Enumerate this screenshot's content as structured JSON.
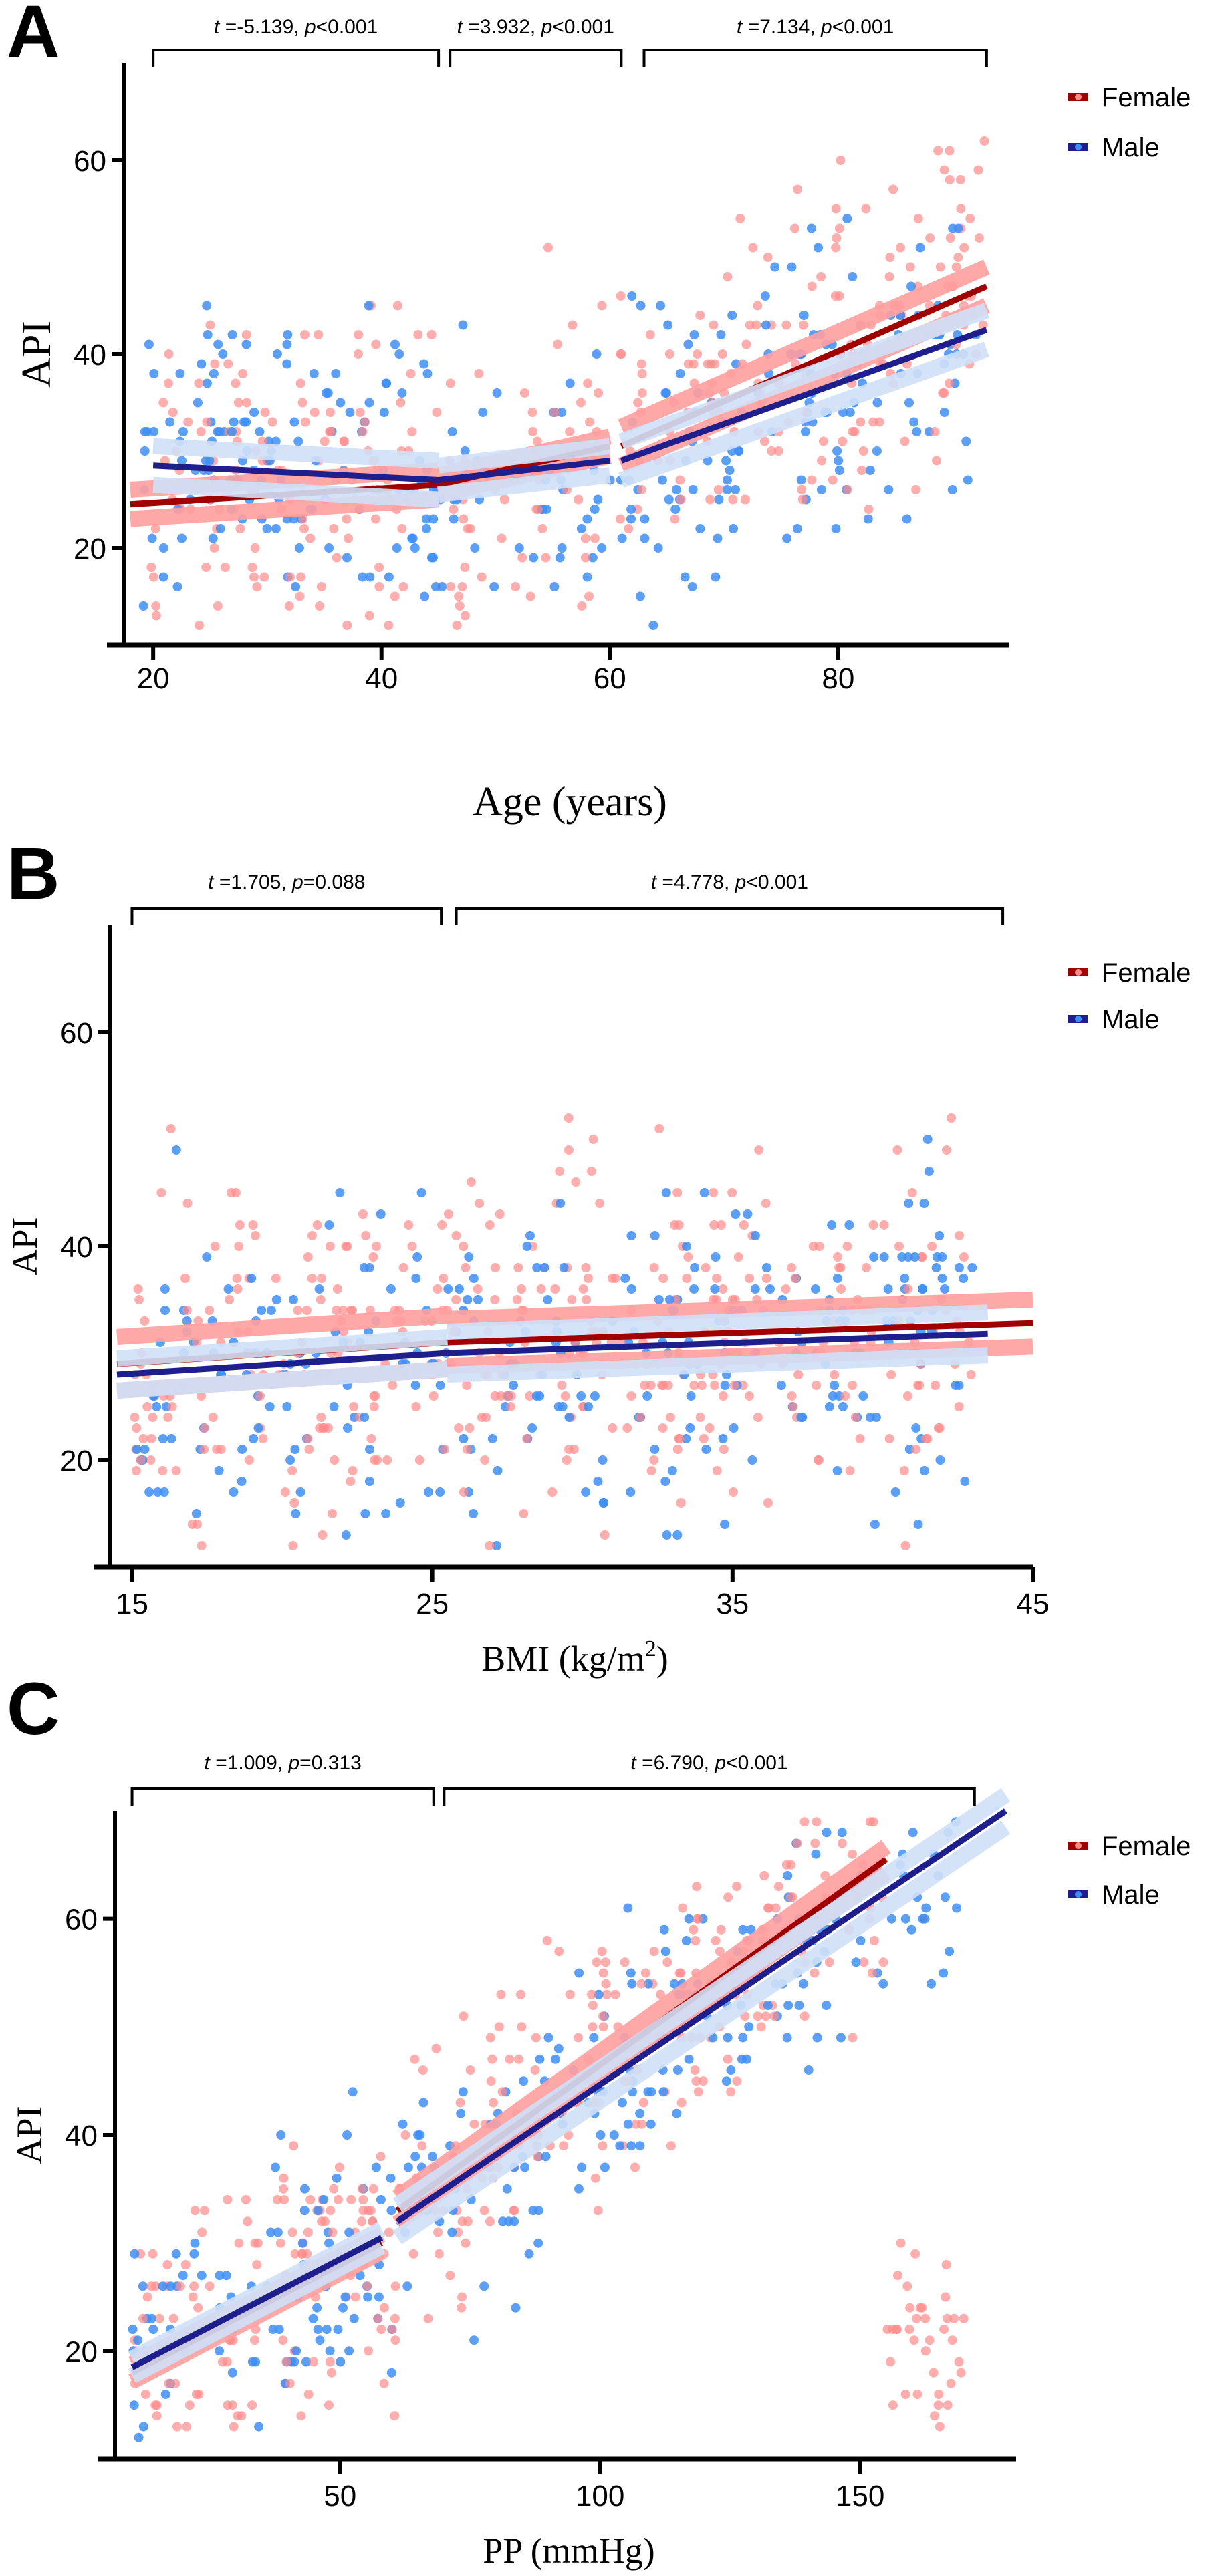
{
  "figure": {
    "colors": {
      "female_point": "#ff8a8a",
      "male_point": "#3f8ef5",
      "female_line": "#a00000",
      "male_line": "#1e1e8c",
      "female_ci": "#ff9e9e",
      "male_ci": "#cfe0f7"
    }
  },
  "chart_data": [
    {
      "panel": "A",
      "type": "scatter",
      "xlabel": "Age (years)",
      "ylabel": "API",
      "xlim": [
        18,
        95
      ],
      "ylim": [
        10,
        70
      ],
      "xticks": [
        20,
        40,
        60,
        80
      ],
      "yticks": [
        20,
        40,
        60
      ],
      "legend": {
        "position": "top-right",
        "entries": [
          "Female",
          "Male"
        ]
      },
      "annotations": [
        {
          "t": "-5.139",
          "p_op": "<",
          "p": "0.001",
          "x_range": [
            20,
            45
          ]
        },
        {
          "t": "3.932",
          "p_op": "<",
          "p": "0.001",
          "x_range": [
            46,
            61
          ]
        },
        {
          "t": "7.134",
          "p_op": "<",
          "p": "0.001",
          "x_range": [
            63,
            93
          ]
        }
      ],
      "series": [
        {
          "name": "Female",
          "segments": [
            {
              "x": [
                18,
                45
              ],
              "y": [
                24.5,
                26.5
              ],
              "ci": 1.5
            },
            {
              "x": [
                45,
                60
              ],
              "y": [
                26.5,
                30.5
              ],
              "ci": 1.0
            },
            {
              "x": [
                61,
                93
              ],
              "y": [
                30.5,
                47
              ],
              "ci": 2.0
            }
          ]
        },
        {
          "name": "Male",
          "segments": [
            {
              "x": [
                20,
                45
              ],
              "y": [
                28.5,
                27
              ],
              "ci": 2.0
            },
            {
              "x": [
                45,
                60
              ],
              "y": [
                27,
                29
              ],
              "ci": 1.5
            },
            {
              "x": [
                61,
                93
              ],
              "y": [
                29,
                42.5
              ],
              "ci": 2.0
            }
          ]
        }
      ],
      "scatter": {
        "x_range": [
          19,
          93
        ],
        "y_center": 28,
        "y_spread": 8,
        "y_step": 1
      }
    },
    {
      "panel": "B",
      "type": "scatter",
      "xlabel": "BMI (kg/m",
      "xlabel_sup": "2",
      "xlabel_tail": ")",
      "ylabel": "API",
      "xlim": [
        14.5,
        45
      ],
      "ylim": [
        10,
        70
      ],
      "xticks": [
        15,
        25,
        35,
        45
      ],
      "yticks": [
        20,
        40,
        60
      ],
      "legend": {
        "position": "top-right",
        "entries": [
          "Female",
          "Male"
        ]
      },
      "annotations": [
        {
          "t": "1.705",
          "p_op": "=",
          "p": "0.088",
          "x_range": [
            15,
            25.3
          ]
        },
        {
          "t": "4.778",
          "p_op": "<",
          "p": "0.001",
          "x_range": [
            25.8,
            44
          ]
        }
      ],
      "series": [
        {
          "name": "Female",
          "segments": [
            {
              "x": [
                14.5,
                25.5
              ],
              "y": [
                29,
                31
              ],
              "ci": 2.5
            },
            {
              "x": [
                25.5,
                45
              ],
              "y": [
                31,
                32.8
              ],
              "ci": 2.2
            }
          ]
        },
        {
          "name": "Male",
          "segments": [
            {
              "x": [
                14.5,
                25.5
              ],
              "y": [
                28,
                30
              ],
              "ci": 1.5
            },
            {
              "x": [
                25.5,
                43.5
              ],
              "y": [
                30,
                31.8
              ],
              "ci": 2.0
            }
          ]
        }
      ],
      "scatter": {
        "x_range": [
          15,
          43
        ],
        "y_center": 29,
        "y_spread": 8,
        "y_step": 1
      }
    },
    {
      "panel": "C",
      "type": "scatter",
      "xlabel": "PP (mmHg)",
      "ylabel": "API",
      "xlim": [
        8,
        180
      ],
      "ylim": [
        10,
        70
      ],
      "xticks": [
        50,
        100,
        150
      ],
      "yticks": [
        20,
        40,
        60
      ],
      "legend": {
        "position": "top-right",
        "entries": [
          "Female",
          "Male"
        ]
      },
      "annotations": [
        {
          "t": "1.009",
          "p_op": "=",
          "p": "0.313",
          "x_range": [
            10,
            68
          ]
        },
        {
          "t": "6.790",
          "p_op": "<",
          "p": "0.001",
          "x_range": [
            70,
            172
          ]
        }
      ],
      "series": [
        {
          "name": "Female",
          "segments": [
            {
              "x": [
                10,
                58
              ],
              "y": [
                18,
                30
              ],
              "ci": 0.8
            },
            {
              "x": [
                61,
                155
              ],
              "y": [
                33,
                65.5
              ],
              "ci": 1.2
            }
          ]
        },
        {
          "name": "Male",
          "segments": [
            {
              "x": [
                10,
                58
              ],
              "y": [
                18.5,
                30.5
              ],
              "ci": 0.8
            },
            {
              "x": [
                61,
                178
              ],
              "y": [
                32,
                70
              ],
              "ci": 1.5
            }
          ]
        }
      ],
      "scatter": {
        "x_range": [
          10,
          170
        ],
        "y_center": 20,
        "y_spread": 6,
        "y_step": 1
      }
    }
  ]
}
